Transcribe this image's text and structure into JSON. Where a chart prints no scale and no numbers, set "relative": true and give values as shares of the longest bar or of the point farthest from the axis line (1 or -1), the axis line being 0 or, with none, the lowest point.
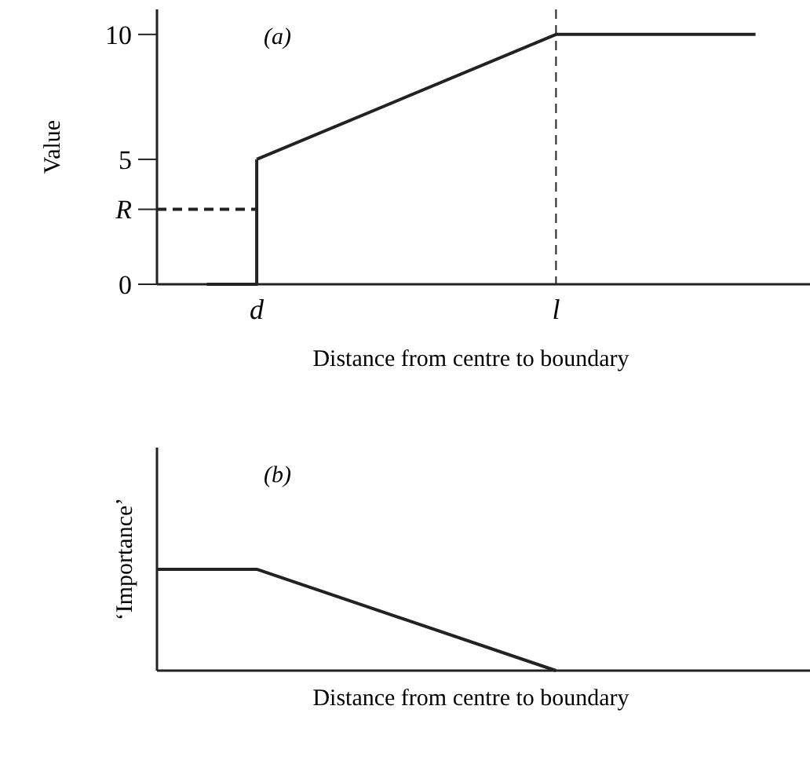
{
  "chart_data": [
    {
      "type": "line",
      "xlabel": "Distance from centre to boundary",
      "ylabel": "Value",
      "annotations": [
        "(a)"
      ],
      "categories": [
        null,
        null,
        "d",
        null,
        null,
        null,
        null,
        null,
        "l",
        null,
        null,
        null,
        null
      ],
      "series": [
        {
          "type": "step",
          "color": "#222222",
          "values": [
            null,
            0,
            5,
            null,
            null,
            null,
            null,
            null,
            null,
            null,
            null,
            null,
            null
          ]
        },
        {
          "color": "#222222",
          "values": [
            null,
            null,
            5,
            null,
            null,
            null,
            null,
            null,
            10,
            null,
            null,
            null,
            10
          ]
        },
        {
          "color": "#222222",
          "values": [
            3,
            3,
            3,
            null,
            null,
            null,
            null,
            null,
            null,
            null,
            null,
            null,
            null
          ],
          "line_style": "dashed"
        }
      ],
      "ylim": [
        0,
        11
      ],
      "yticks": [
        0,
        {
          "value": 3,
          "label": "R"
        },
        5,
        10
      ],
      "ref_lines": [
        {
          "axis": "x",
          "value": "l",
          "line_style": "dashed"
        }
      ]
    },
    {
      "type": "line",
      "relative": true,
      "xlabel": "Distance from centre to boundary",
      "ylabel": "‘Importance’",
      "annotations": [
        "(b)"
      ],
      "categories": [
        null,
        null,
        null,
        null,
        null,
        null,
        null,
        null,
        null,
        null,
        null,
        null,
        null
      ],
      "series": [
        {
          "color": "#222222",
          "values": [
            1,
            null,
            1,
            null,
            null,
            null,
            null,
            null,
            0,
            null,
            null,
            null,
            null
          ]
        }
      ]
    }
  ]
}
